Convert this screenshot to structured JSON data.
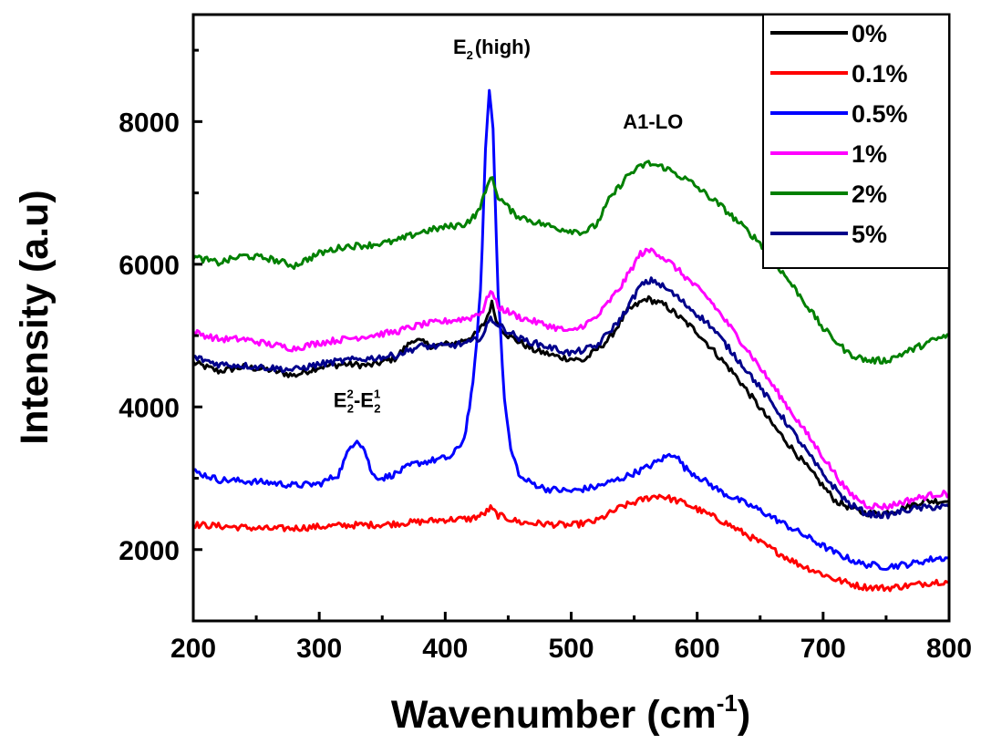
{
  "chart_data": {
    "type": "line",
    "xlabel": "Wavenumber (cm",
    "xlabel_sup": "-1",
    "xlabel_end": ")",
    "ylabel": "Intensity (a.u)",
    "xlim": [
      200,
      800
    ],
    "ylim": [
      1000,
      9500
    ],
    "xticks": [
      200,
      300,
      400,
      500,
      600,
      700,
      800
    ],
    "yticks": [
      2000,
      4000,
      6000,
      8000
    ],
    "grid": false,
    "legend_position": "top-right",
    "annotations": {
      "e2high": {
        "main": "E",
        "sub": "2",
        "rest": "(high)",
        "x": 437,
        "y": 8950
      },
      "a1lo": {
        "text": "A1-LO",
        "x": 565,
        "y": 7900
      },
      "e2e1": {
        "p1": "E",
        "sup1": "2",
        "sub1": "2",
        "dash": "-E",
        "sup2": "1",
        "sub2": "2",
        "x": 330,
        "y": 4000
      }
    },
    "series": [
      {
        "name": "0%",
        "color": "#000000",
        "points": [
          [
            200,
            4620
          ],
          [
            220,
            4500
          ],
          [
            240,
            4560
          ],
          [
            260,
            4520
          ],
          [
            280,
            4440
          ],
          [
            300,
            4560
          ],
          [
            320,
            4600
          ],
          [
            340,
            4580
          ],
          [
            360,
            4680
          ],
          [
            375,
            4950
          ],
          [
            390,
            4850
          ],
          [
            410,
            4900
          ],
          [
            425,
            5020
          ],
          [
            432,
            5200
          ],
          [
            437,
            5450
          ],
          [
            442,
            5150
          ],
          [
            450,
            5000
          ],
          [
            470,
            4800
          ],
          [
            490,
            4700
          ],
          [
            510,
            4650
          ],
          [
            530,
            4950
          ],
          [
            545,
            5350
          ],
          [
            560,
            5520
          ],
          [
            575,
            5420
          ],
          [
            600,
            5050
          ],
          [
            630,
            4450
          ],
          [
            660,
            3750
          ],
          [
            690,
            3100
          ],
          [
            710,
            2680
          ],
          [
            730,
            2520
          ],
          [
            745,
            2500
          ],
          [
            760,
            2560
          ],
          [
            780,
            2680
          ],
          [
            800,
            2680
          ]
        ]
      },
      {
        "name": "0.1%",
        "color": "#ff0000",
        "points": [
          [
            200,
            2350
          ],
          [
            220,
            2330
          ],
          [
            240,
            2310
          ],
          [
            260,
            2290
          ],
          [
            280,
            2300
          ],
          [
            300,
            2320
          ],
          [
            320,
            2340
          ],
          [
            350,
            2350
          ],
          [
            380,
            2390
          ],
          [
            400,
            2420
          ],
          [
            420,
            2430
          ],
          [
            430,
            2490
          ],
          [
            436,
            2580
          ],
          [
            442,
            2480
          ],
          [
            460,
            2380
          ],
          [
            480,
            2360
          ],
          [
            500,
            2340
          ],
          [
            520,
            2400
          ],
          [
            540,
            2600
          ],
          [
            560,
            2720
          ],
          [
            570,
            2760
          ],
          [
            590,
            2650
          ],
          [
            620,
            2400
          ],
          [
            650,
            2100
          ],
          [
            680,
            1800
          ],
          [
            710,
            1580
          ],
          [
            730,
            1480
          ],
          [
            750,
            1460
          ],
          [
            770,
            1500
          ],
          [
            790,
            1550
          ],
          [
            800,
            1550
          ]
        ]
      },
      {
        "name": "0.5%",
        "color": "#0000ff",
        "points": [
          [
            200,
            3100
          ],
          [
            220,
            2980
          ],
          [
            240,
            2960
          ],
          [
            260,
            2940
          ],
          [
            280,
            2900
          ],
          [
            300,
            2920
          ],
          [
            315,
            3050
          ],
          [
            325,
            3450
          ],
          [
            330,
            3550
          ],
          [
            336,
            3400
          ],
          [
            342,
            3050
          ],
          [
            350,
            3000
          ],
          [
            360,
            3060
          ],
          [
            375,
            3200
          ],
          [
            390,
            3250
          ],
          [
            405,
            3300
          ],
          [
            415,
            3550
          ],
          [
            422,
            4300
          ],
          [
            428,
            5600
          ],
          [
            432,
            7600
          ],
          [
            435,
            8450
          ],
          [
            438,
            7900
          ],
          [
            442,
            5600
          ],
          [
            447,
            4100
          ],
          [
            452,
            3400
          ],
          [
            460,
            3000
          ],
          [
            480,
            2850
          ],
          [
            500,
            2820
          ],
          [
            520,
            2880
          ],
          [
            540,
            3000
          ],
          [
            560,
            3150
          ],
          [
            575,
            3300
          ],
          [
            582,
            3350
          ],
          [
            590,
            3150
          ],
          [
            620,
            2800
          ],
          [
            650,
            2550
          ],
          [
            680,
            2250
          ],
          [
            710,
            1950
          ],
          [
            730,
            1800
          ],
          [
            750,
            1760
          ],
          [
            770,
            1800
          ],
          [
            790,
            1880
          ],
          [
            800,
            1880
          ]
        ]
      },
      {
        "name": "1%",
        "color": "#ff00ff",
        "points": [
          [
            200,
            5050
          ],
          [
            220,
            4950
          ],
          [
            240,
            4950
          ],
          [
            260,
            4880
          ],
          [
            280,
            4820
          ],
          [
            300,
            4900
          ],
          [
            320,
            4950
          ],
          [
            340,
            5000
          ],
          [
            360,
            5050
          ],
          [
            380,
            5150
          ],
          [
            400,
            5200
          ],
          [
            420,
            5250
          ],
          [
            430,
            5350
          ],
          [
            436,
            5650
          ],
          [
            442,
            5400
          ],
          [
            460,
            5250
          ],
          [
            480,
            5150
          ],
          [
            500,
            5050
          ],
          [
            520,
            5250
          ],
          [
            540,
            5700
          ],
          [
            555,
            6150
          ],
          [
            565,
            6200
          ],
          [
            580,
            6000
          ],
          [
            610,
            5500
          ],
          [
            640,
            4800
          ],
          [
            670,
            4050
          ],
          [
            700,
            3300
          ],
          [
            720,
            2800
          ],
          [
            735,
            2620
          ],
          [
            750,
            2600
          ],
          [
            770,
            2700
          ],
          [
            790,
            2780
          ],
          [
            800,
            2780
          ]
        ]
      },
      {
        "name": "2%",
        "color": "#008000",
        "points": [
          [
            200,
            6100
          ],
          [
            220,
            6020
          ],
          [
            240,
            6120
          ],
          [
            260,
            6080
          ],
          [
            280,
            5980
          ],
          [
            300,
            6150
          ],
          [
            320,
            6250
          ],
          [
            340,
            6270
          ],
          [
            360,
            6320
          ],
          [
            380,
            6450
          ],
          [
            400,
            6520
          ],
          [
            415,
            6560
          ],
          [
            425,
            6700
          ],
          [
            432,
            7000
          ],
          [
            436,
            7250
          ],
          [
            442,
            6950
          ],
          [
            455,
            6700
          ],
          [
            470,
            6600
          ],
          [
            490,
            6500
          ],
          [
            510,
            6450
          ],
          [
            520,
            6550
          ],
          [
            530,
            6900
          ],
          [
            545,
            7250
          ],
          [
            560,
            7420
          ],
          [
            575,
            7350
          ],
          [
            595,
            7150
          ],
          [
            620,
            6800
          ],
          [
            650,
            6300
          ],
          [
            680,
            5600
          ],
          [
            700,
            5100
          ],
          [
            720,
            4750
          ],
          [
            735,
            4650
          ],
          [
            750,
            4650
          ],
          [
            770,
            4800
          ],
          [
            790,
            4950
          ],
          [
            800,
            5000
          ]
        ]
      },
      {
        "name": "5%",
        "color": "#00008b",
        "points": [
          [
            200,
            4700
          ],
          [
            220,
            4600
          ],
          [
            240,
            4580
          ],
          [
            260,
            4550
          ],
          [
            280,
            4520
          ],
          [
            300,
            4600
          ],
          [
            320,
            4650
          ],
          [
            340,
            4680
          ],
          [
            360,
            4720
          ],
          [
            380,
            4850
          ],
          [
            400,
            4850
          ],
          [
            420,
            4900
          ],
          [
            430,
            5000
          ],
          [
            436,
            5250
          ],
          [
            442,
            5150
          ],
          [
            460,
            4950
          ],
          [
            480,
            4850
          ],
          [
            500,
            4750
          ],
          [
            520,
            4850
          ],
          [
            540,
            5250
          ],
          [
            555,
            5700
          ],
          [
            565,
            5780
          ],
          [
            580,
            5600
          ],
          [
            610,
            5150
          ],
          [
            640,
            4500
          ],
          [
            670,
            3800
          ],
          [
            700,
            3050
          ],
          [
            720,
            2650
          ],
          [
            735,
            2500
          ],
          [
            750,
            2480
          ],
          [
            770,
            2570
          ],
          [
            790,
            2600
          ],
          [
            800,
            2600
          ]
        ]
      }
    ]
  }
}
